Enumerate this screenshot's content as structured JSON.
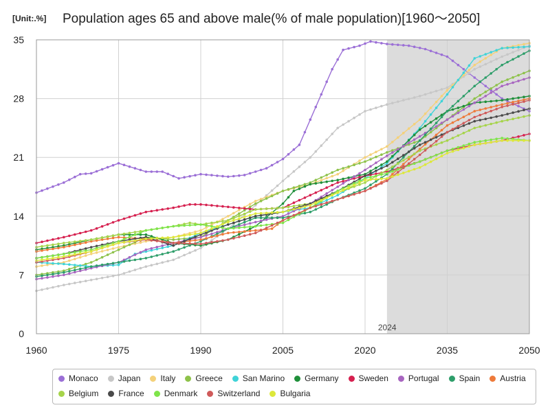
{
  "chart_data": {
    "type": "line",
    "title": "Population ages 65 and above male(% of male population)[1960～2050]",
    "unit_label": "[Unit:.%]",
    "xlim": [
      1960,
      2050
    ],
    "ylim": [
      0,
      35
    ],
    "x_ticks": [
      1960,
      1975,
      1990,
      2005,
      2020,
      2035,
      2050
    ],
    "y_ticks": [
      0,
      7,
      14,
      21,
      28,
      35
    ],
    "forecast_start": 2024,
    "forecast_label": "2024",
    "series": [
      {
        "name": "Monaco",
        "color": "#9b6fd6",
        "points": [
          [
            1960,
            16.8
          ],
          [
            1965,
            18.0
          ],
          [
            1968,
            19.0
          ],
          [
            1970,
            19.1
          ],
          [
            1975,
            20.3
          ],
          [
            1980,
            19.3
          ],
          [
            1983,
            19.3
          ],
          [
            1986,
            18.5
          ],
          [
            1990,
            19.0
          ],
          [
            1995,
            18.7
          ],
          [
            1998,
            18.9
          ],
          [
            2002,
            19.7
          ],
          [
            2005,
            20.8
          ],
          [
            2008,
            22.5
          ],
          [
            2011,
            27.0
          ],
          [
            2014,
            31.5
          ],
          [
            2016,
            33.8
          ],
          [
            2019,
            34.3
          ],
          [
            2021,
            34.8
          ],
          [
            2024,
            34.5
          ],
          [
            2028,
            34.3
          ],
          [
            2031,
            33.9
          ],
          [
            2035,
            33.0
          ],
          [
            2040,
            30.5
          ],
          [
            2045,
            28.0
          ],
          [
            2050,
            26.5
          ]
        ]
      },
      {
        "name": "Japan",
        "color": "#c7c7c7",
        "points": [
          [
            1960,
            5.1
          ],
          [
            1965,
            5.8
          ],
          [
            1970,
            6.4
          ],
          [
            1975,
            7.0
          ],
          [
            1980,
            8.0
          ],
          [
            1985,
            8.8
          ],
          [
            1990,
            10.2
          ],
          [
            1995,
            12.5
          ],
          [
            2000,
            15.3
          ],
          [
            2005,
            18.2
          ],
          [
            2010,
            21.0
          ],
          [
            2015,
            24.5
          ],
          [
            2020,
            26.5
          ],
          [
            2024,
            27.3
          ],
          [
            2030,
            28.3
          ],
          [
            2035,
            29.3
          ],
          [
            2040,
            31.5
          ],
          [
            2045,
            33.0
          ],
          [
            2050,
            34.3
          ]
        ]
      },
      {
        "name": "Italy",
        "color": "#f4d17a",
        "points": [
          [
            1960,
            8.0
          ],
          [
            1965,
            8.5
          ],
          [
            1970,
            9.5
          ],
          [
            1975,
            10.3
          ],
          [
            1980,
            11.0
          ],
          [
            1985,
            11.5
          ],
          [
            1990,
            12.3
          ],
          [
            1995,
            14.0
          ],
          [
            2000,
            15.8
          ],
          [
            2005,
            17.0
          ],
          [
            2010,
            17.8
          ],
          [
            2015,
            19.0
          ],
          [
            2020,
            21.0
          ],
          [
            2024,
            22.3
          ],
          [
            2030,
            25.5
          ],
          [
            2035,
            29.0
          ],
          [
            2040,
            32.0
          ],
          [
            2045,
            34.0
          ],
          [
            2050,
            34.6
          ]
        ]
      },
      {
        "name": "Greece",
        "color": "#8ec24a",
        "points": [
          [
            1960,
            7.0
          ],
          [
            1965,
            7.5
          ],
          [
            1970,
            8.5
          ],
          [
            1975,
            10.0
          ],
          [
            1980,
            11.5
          ],
          [
            1985,
            11.2
          ],
          [
            1990,
            11.5
          ],
          [
            1995,
            13.5
          ],
          [
            2000,
            15.5
          ],
          [
            2005,
            17.0
          ],
          [
            2010,
            18.0
          ],
          [
            2015,
            19.5
          ],
          [
            2020,
            20.5
          ],
          [
            2024,
            21.6
          ],
          [
            2030,
            23.0
          ],
          [
            2035,
            25.5
          ],
          [
            2040,
            28.0
          ],
          [
            2045,
            30.0
          ],
          [
            2050,
            31.3
          ]
        ]
      },
      {
        "name": "San Marino",
        "color": "#3fd3d8",
        "points": [
          [
            1960,
            8.5
          ],
          [
            1965,
            8.3
          ],
          [
            1970,
            8.0
          ],
          [
            1975,
            8.2
          ],
          [
            1978,
            9.5
          ],
          [
            1985,
            10.5
          ],
          [
            1990,
            12.0
          ],
          [
            1995,
            13.0
          ],
          [
            2000,
            14.0
          ],
          [
            2005,
            14.5
          ],
          [
            2010,
            15.0
          ],
          [
            2015,
            16.5
          ],
          [
            2020,
            18.5
          ],
          [
            2024,
            20.3
          ],
          [
            2030,
            24.5
          ],
          [
            2035,
            28.5
          ],
          [
            2040,
            32.8
          ],
          [
            2045,
            34.0
          ],
          [
            2050,
            34.2
          ]
        ]
      },
      {
        "name": "Germany",
        "color": "#1f8f3a",
        "points": [
          [
            1960,
            10.0
          ],
          [
            1965,
            10.5
          ],
          [
            1970,
            11.2
          ],
          [
            1975,
            11.8
          ],
          [
            1980,
            11.8
          ],
          [
            1985,
            10.8
          ],
          [
            1990,
            10.5
          ],
          [
            1995,
            11.2
          ],
          [
            2000,
            12.8
          ],
          [
            2005,
            15.5
          ],
          [
            2007,
            17.0
          ],
          [
            2010,
            17.8
          ],
          [
            2015,
            18.3
          ],
          [
            2020,
            19.0
          ],
          [
            2024,
            20.5
          ],
          [
            2030,
            24.3
          ],
          [
            2035,
            26.5
          ],
          [
            2040,
            27.5
          ],
          [
            2045,
            27.8
          ],
          [
            2050,
            28.3
          ]
        ]
      },
      {
        "name": "Sweden",
        "color": "#d6204f",
        "points": [
          [
            1960,
            10.8
          ],
          [
            1965,
            11.5
          ],
          [
            1970,
            12.3
          ],
          [
            1975,
            13.5
          ],
          [
            1980,
            14.5
          ],
          [
            1985,
            15.0
          ],
          [
            1988,
            15.4
          ],
          [
            1990,
            15.4
          ],
          [
            1995,
            15.1
          ],
          [
            2000,
            14.8
          ],
          [
            2005,
            15.0
          ],
          [
            2010,
            16.5
          ],
          [
            2015,
            18.0
          ],
          [
            2020,
            18.8
          ],
          [
            2024,
            19.3
          ],
          [
            2030,
            20.5
          ],
          [
            2035,
            21.8
          ],
          [
            2040,
            22.5
          ],
          [
            2045,
            23.0
          ],
          [
            2050,
            23.8
          ]
        ]
      },
      {
        "name": "Portugal",
        "color": "#a865c0",
        "points": [
          [
            1960,
            6.5
          ],
          [
            1965,
            7.0
          ],
          [
            1970,
            7.8
          ],
          [
            1975,
            8.5
          ],
          [
            1980,
            10.0
          ],
          [
            1985,
            10.8
          ],
          [
            1990,
            11.5
          ],
          [
            1995,
            12.5
          ],
          [
            2000,
            13.3
          ],
          [
            2005,
            14.0
          ],
          [
            2010,
            15.5
          ],
          [
            2015,
            17.5
          ],
          [
            2020,
            19.5
          ],
          [
            2024,
            21.2
          ],
          [
            2030,
            23.5
          ],
          [
            2035,
            25.5
          ],
          [
            2040,
            27.5
          ],
          [
            2045,
            29.5
          ],
          [
            2050,
            30.5
          ]
        ]
      },
      {
        "name": "Spain",
        "color": "#2e9e6a",
        "points": [
          [
            1960,
            6.8
          ],
          [
            1965,
            7.3
          ],
          [
            1970,
            8.0
          ],
          [
            1975,
            8.5
          ],
          [
            1980,
            9.0
          ],
          [
            1985,
            9.8
          ],
          [
            1990,
            11.0
          ],
          [
            1995,
            12.5
          ],
          [
            2000,
            13.8
          ],
          [
            2005,
            13.8
          ],
          [
            2010,
            14.5
          ],
          [
            2015,
            16.0
          ],
          [
            2020,
            17.3
          ],
          [
            2024,
            19.0
          ],
          [
            2030,
            23.0
          ],
          [
            2035,
            26.5
          ],
          [
            2040,
            29.5
          ],
          [
            2045,
            32.0
          ],
          [
            2050,
            33.7
          ]
        ]
      },
      {
        "name": "Austria",
        "color": "#ee7a3a",
        "points": [
          [
            1960,
            9.8
          ],
          [
            1965,
            10.3
          ],
          [
            1970,
            11.0
          ],
          [
            1975,
            11.5
          ],
          [
            1980,
            11.3
          ],
          [
            1985,
            10.8
          ],
          [
            1990,
            11.2
          ],
          [
            1995,
            12.0
          ],
          [
            2000,
            12.3
          ],
          [
            2003,
            12.5
          ],
          [
            2005,
            13.5
          ],
          [
            2010,
            15.0
          ],
          [
            2015,
            16.0
          ],
          [
            2020,
            17.0
          ],
          [
            2024,
            18.4
          ],
          [
            2030,
            22.0
          ],
          [
            2035,
            24.8
          ],
          [
            2040,
            26.5
          ],
          [
            2045,
            27.3
          ],
          [
            2050,
            28.0
          ]
        ]
      },
      {
        "name": "Belgium",
        "color": "#a6d44a",
        "points": [
          [
            1960,
            10.3
          ],
          [
            1965,
            10.8
          ],
          [
            1970,
            11.2
          ],
          [
            1975,
            11.8
          ],
          [
            1980,
            12.3
          ],
          [
            1985,
            12.8
          ],
          [
            1988,
            13.2
          ],
          [
            1990,
            13.0
          ],
          [
            1995,
            13.5
          ],
          [
            2000,
            14.8
          ],
          [
            2005,
            15.0
          ],
          [
            2010,
            15.5
          ],
          [
            2015,
            16.8
          ],
          [
            2020,
            18.0
          ],
          [
            2024,
            19.5
          ],
          [
            2030,
            21.8
          ],
          [
            2035,
            23.0
          ],
          [
            2040,
            24.5
          ],
          [
            2045,
            25.3
          ],
          [
            2050,
            26.0
          ]
        ]
      },
      {
        "name": "France",
        "color": "#4a4a4a",
        "points": [
          [
            1960,
            9.0
          ],
          [
            1965,
            9.5
          ],
          [
            1970,
            10.3
          ],
          [
            1975,
            11.0
          ],
          [
            1980,
            11.5
          ],
          [
            1985,
            10.5
          ],
          [
            1990,
            11.8
          ],
          [
            1995,
            13.0
          ],
          [
            2000,
            14.0
          ],
          [
            2005,
            14.5
          ],
          [
            2010,
            15.5
          ],
          [
            2015,
            17.0
          ],
          [
            2020,
            18.8
          ],
          [
            2024,
            20.0
          ],
          [
            2030,
            22.5
          ],
          [
            2035,
            24.0
          ],
          [
            2040,
            25.3
          ],
          [
            2045,
            26.0
          ],
          [
            2050,
            26.8
          ]
        ]
      },
      {
        "name": "Denmark",
        "color": "#7fe44a",
        "points": [
          [
            1960,
            9.0
          ],
          [
            1965,
            9.5
          ],
          [
            1970,
            10.0
          ],
          [
            1975,
            11.0
          ],
          [
            1980,
            12.3
          ],
          [
            1985,
            12.8
          ],
          [
            1990,
            13.0
          ],
          [
            1995,
            12.5
          ],
          [
            2000,
            12.8
          ],
          [
            2005,
            13.2
          ],
          [
            2010,
            15.0
          ],
          [
            2015,
            17.0
          ],
          [
            2020,
            18.5
          ],
          [
            2024,
            19.1
          ],
          [
            2030,
            20.5
          ],
          [
            2035,
            21.8
          ],
          [
            2040,
            22.8
          ],
          [
            2045,
            23.3
          ],
          [
            2050,
            23.0
          ]
        ]
      },
      {
        "name": "Switzerland",
        "color": "#cf5a5a",
        "points": [
          [
            1960,
            8.5
          ],
          [
            1965,
            9.0
          ],
          [
            1970,
            9.8
          ],
          [
            1975,
            10.8
          ],
          [
            1980,
            11.2
          ],
          [
            1985,
            10.8
          ],
          [
            1990,
            10.7
          ],
          [
            1995,
            11.2
          ],
          [
            2000,
            12.0
          ],
          [
            2005,
            13.5
          ],
          [
            2010,
            15.0
          ],
          [
            2015,
            16.0
          ],
          [
            2020,
            17.0
          ],
          [
            2024,
            18.2
          ],
          [
            2030,
            21.3
          ],
          [
            2035,
            24.0
          ],
          [
            2040,
            25.8
          ],
          [
            2045,
            27.0
          ],
          [
            2050,
            27.8
          ]
        ]
      },
      {
        "name": "Bulgaria",
        "color": "#dde83a",
        "points": [
          [
            1960,
            8.7
          ],
          [
            1965,
            9.2
          ],
          [
            1970,
            9.8
          ],
          [
            1975,
            10.8
          ],
          [
            1980,
            11.3
          ],
          [
            1985,
            11.5
          ],
          [
            1990,
            12.0
          ],
          [
            1995,
            13.3
          ],
          [
            2000,
            14.3
          ],
          [
            2005,
            14.5
          ],
          [
            2010,
            15.3
          ],
          [
            2015,
            16.8
          ],
          [
            2020,
            18.3
          ],
          [
            2024,
            18.5
          ],
          [
            2030,
            19.8
          ],
          [
            2035,
            21.5
          ],
          [
            2040,
            22.5
          ],
          [
            2045,
            23.0
          ],
          [
            2050,
            23.0
          ]
        ]
      }
    ]
  }
}
